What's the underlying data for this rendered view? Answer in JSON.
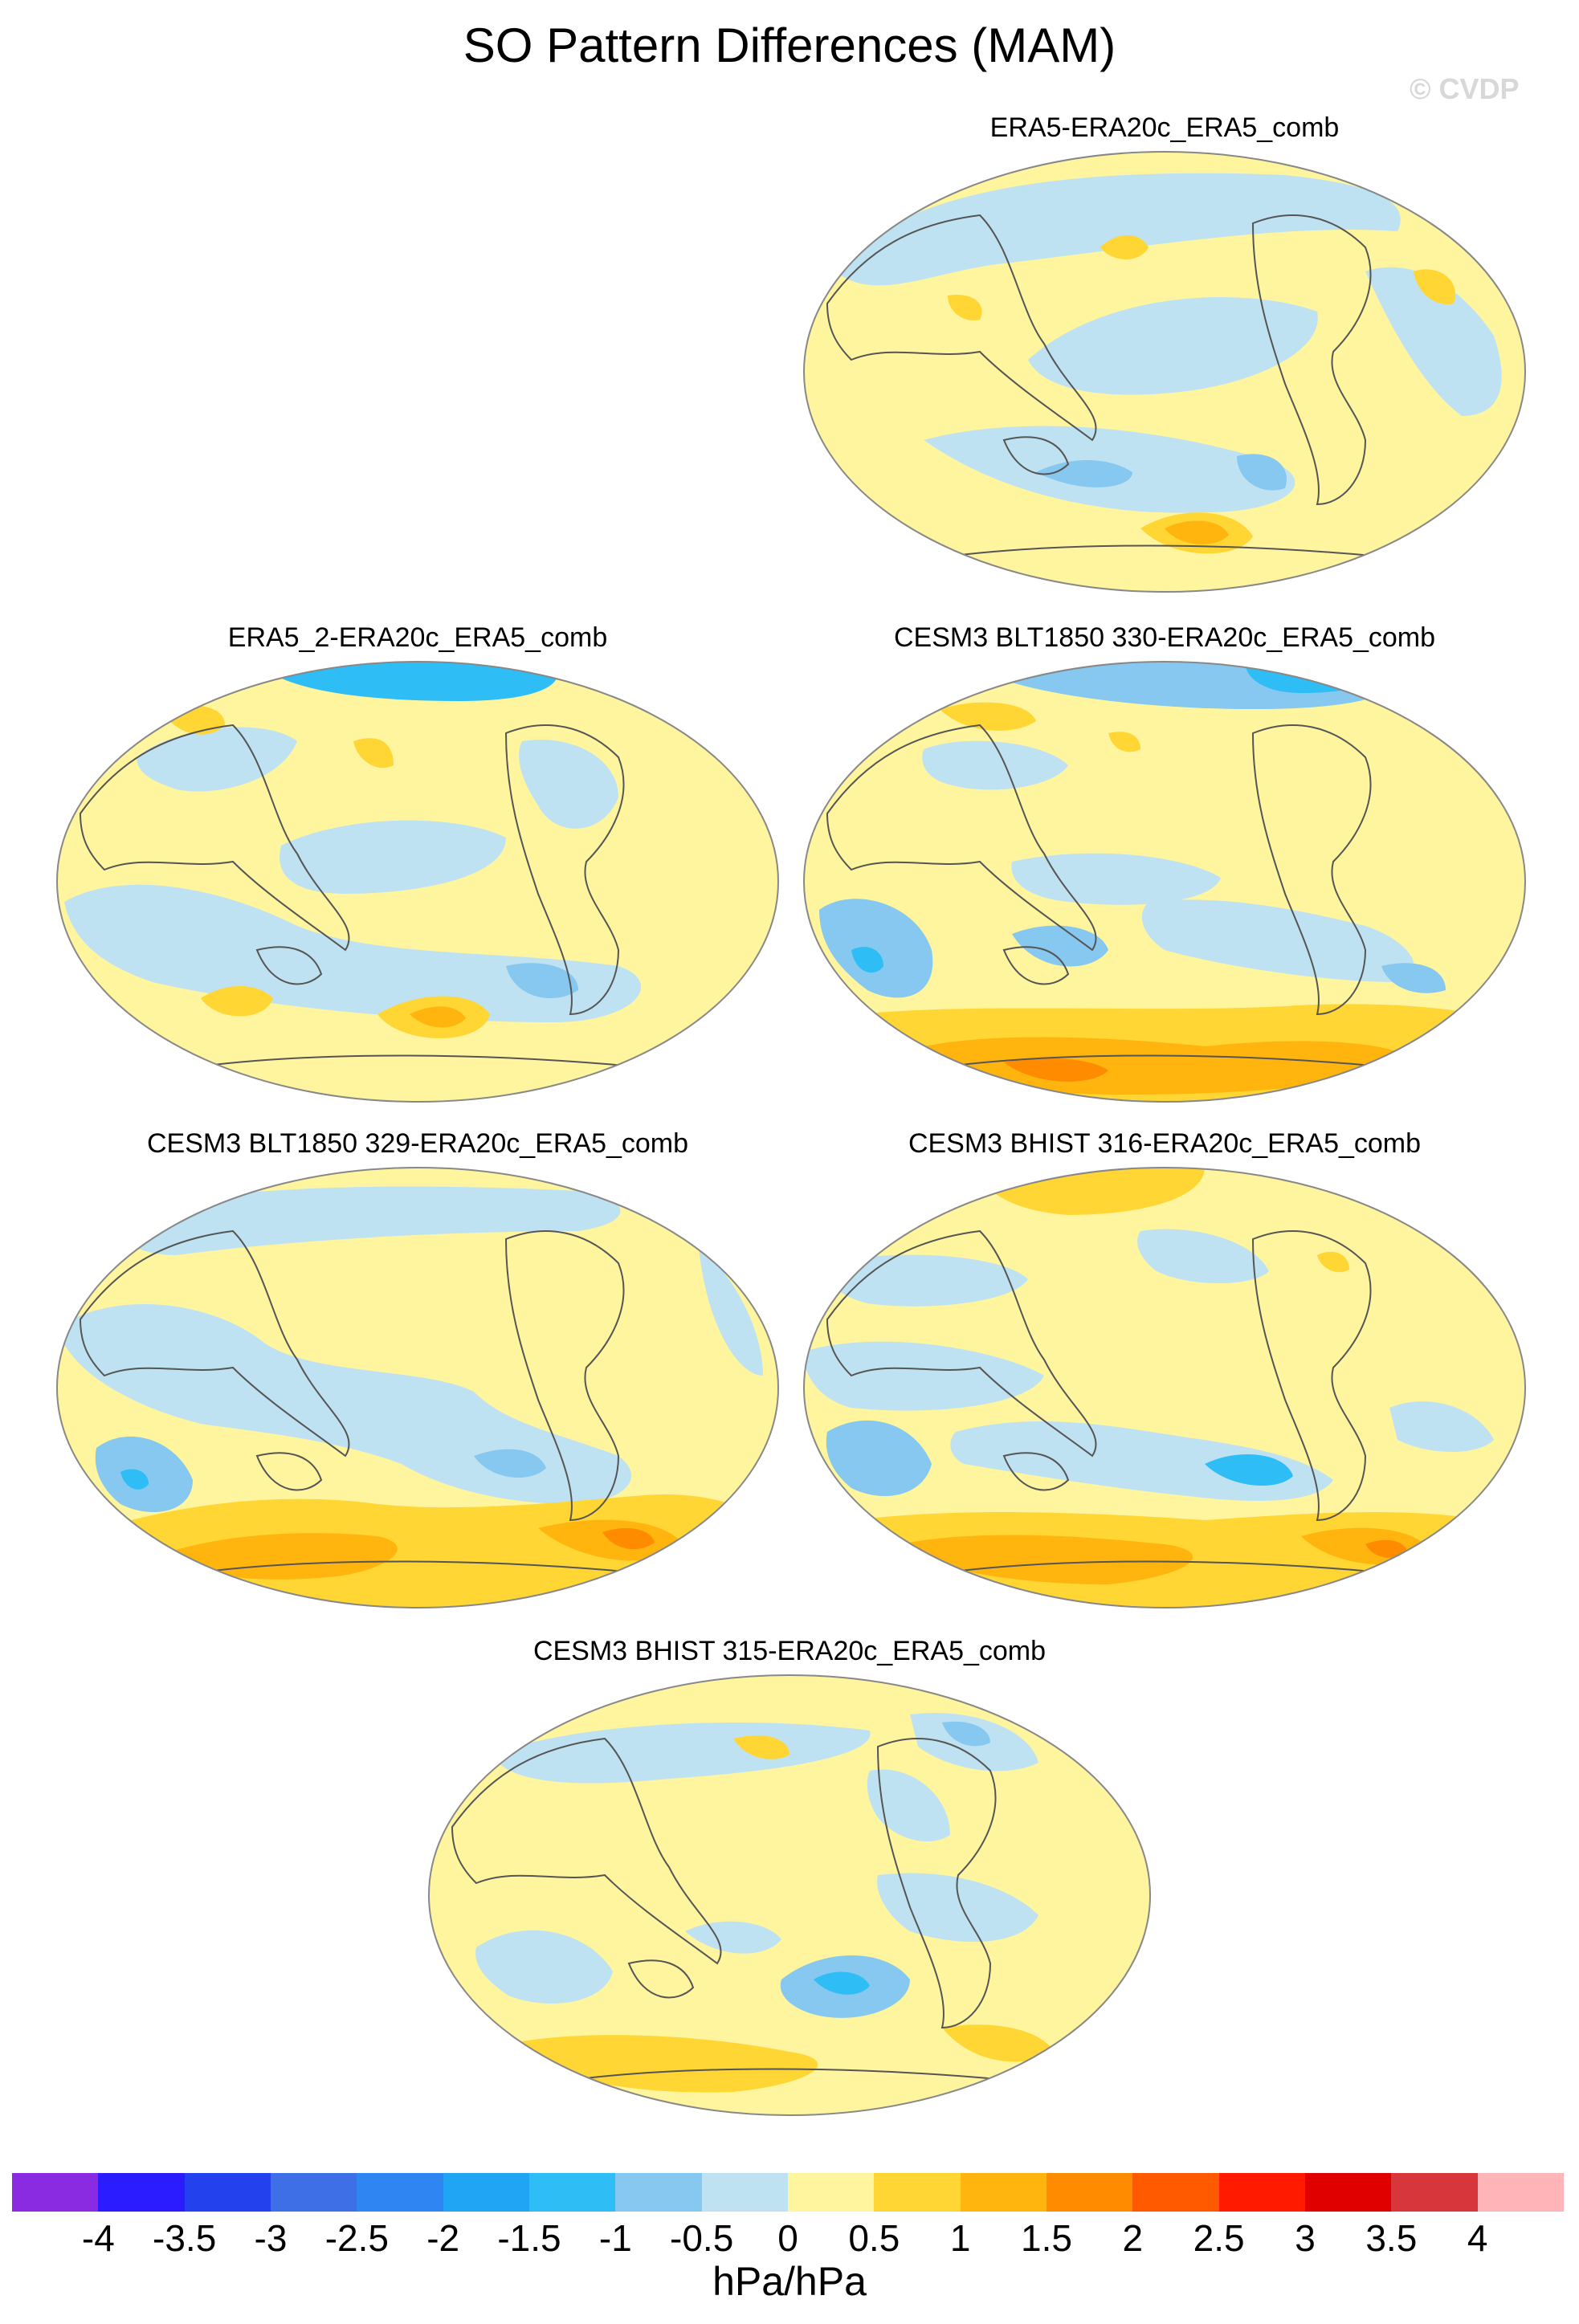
{
  "figure": {
    "title": "SO Pattern Differences (MAM)",
    "watermark": "© CVDP",
    "units_label": "hPa/hPa"
  },
  "colors": {
    "land_outline": "#555555",
    "map_border": "#888888"
  },
  "panels": [
    {
      "title": "ERA5-ERA20c_ERA5_comb"
    },
    {
      "title": "ERA5_2-ERA20c_ERA5_comb"
    },
    {
      "title": "CESM3 BLT1850 330-ERA20c_ERA5_comb"
    },
    {
      "title": "CESM3 BLT1850 329-ERA20c_ERA5_comb"
    },
    {
      "title": "CESM3 BHIST 316-ERA20c_ERA5_comb"
    },
    {
      "title": "CESM3 BHIST 315-ERA20c_ERA5_comb"
    }
  ],
  "colorbar": {
    "levels": [
      "-4",
      "-3.5",
      "-3",
      "-2.5",
      "-2",
      "-1.5",
      "-1",
      "-0.5",
      "0",
      "0.5",
      "1",
      "1.5",
      "2",
      "2.5",
      "3",
      "3.5",
      "4"
    ],
    "colors": [
      "#8a2be2",
      "#2b1cff",
      "#2342ee",
      "#3e6fe6",
      "#2f86f2",
      "#1fa5f3",
      "#2fbdf5",
      "#86c8ef",
      "#bfe2f2",
      "#fff59e",
      "#ffd634",
      "#ffb50d",
      "#ff8c00",
      "#ff5a00",
      "#ff1a00",
      "#e10000",
      "#d7363a",
      "#ffb5b8"
    ]
  }
}
